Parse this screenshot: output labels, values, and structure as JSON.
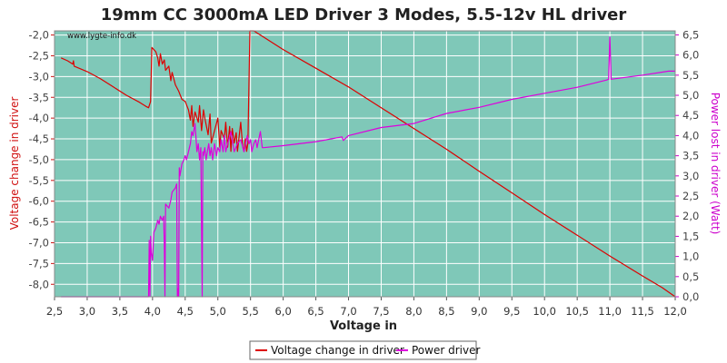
{
  "chart_data": {
    "type": "line",
    "title": "19mm CC 3000mA LED Driver 3 Modes, 5.5-12v HL driver",
    "watermark": "www.lygte-info.dk",
    "xlabel": "Voltage in",
    "ylabel_left": "Voltage change in driver",
    "ylabel_right": "Power lost in driver (Watt)",
    "xlim": [
      2.5,
      12.0
    ],
    "ylim_left": [
      -8.3,
      -1.9
    ],
    "ylim_right": [
      0.0,
      6.6
    ],
    "x_ticks": [
      "2,5",
      "3,0",
      "3,5",
      "4,0",
      "4,5",
      "5,0",
      "5,5",
      "6,0",
      "6,5",
      "7,0",
      "7,5",
      "8,0",
      "8,5",
      "9,0",
      "9,5",
      "10,0",
      "10,5",
      "11,0",
      "11,5",
      "12,0"
    ],
    "y_left_ticks": [
      "-2,0",
      "-2,5",
      "-3,0",
      "-3,5",
      "-4,0",
      "-4,5",
      "-5,0",
      "-5,5",
      "-6,0",
      "-6,5",
      "-7,0",
      "-7,5",
      "-8,0"
    ],
    "y_right_ticks": [
      "0,0",
      "0,5",
      "1,0",
      "1,5",
      "2,0",
      "2,5",
      "3,0",
      "3,5",
      "4,0",
      "4,5",
      "5,0",
      "5,5",
      "6,0",
      "6,5"
    ],
    "grid": true,
    "legend_placement": "bottom",
    "colors": {
      "plot_bg": "#7fc8b8",
      "grid": "#ffffff",
      "left_axis": "#d01010",
      "right_axis": "#cc00cc"
    },
    "series": [
      {
        "name": "Voltage change in driver",
        "axis": "left",
        "color": "#dd0000",
        "points": [
          [
            2.6,
            -2.55
          ],
          [
            2.7,
            -2.62
          ],
          [
            2.78,
            -2.7
          ],
          [
            2.79,
            -2.62
          ],
          [
            2.8,
            -2.75
          ],
          [
            3.0,
            -2.88
          ],
          [
            3.2,
            -3.05
          ],
          [
            3.4,
            -3.25
          ],
          [
            3.6,
            -3.45
          ],
          [
            3.8,
            -3.62
          ],
          [
            3.9,
            -3.72
          ],
          [
            3.94,
            -3.75
          ],
          [
            3.97,
            -3.6
          ],
          [
            3.99,
            -2.3
          ],
          [
            4.05,
            -2.4
          ],
          [
            4.08,
            -2.55
          ],
          [
            4.1,
            -2.75
          ],
          [
            4.12,
            -2.45
          ],
          [
            4.15,
            -2.7
          ],
          [
            4.18,
            -2.6
          ],
          [
            4.2,
            -2.85
          ],
          [
            4.25,
            -2.75
          ],
          [
            4.28,
            -3.1
          ],
          [
            4.3,
            -2.9
          ],
          [
            4.35,
            -3.2
          ],
          [
            4.4,
            -3.35
          ],
          [
            4.45,
            -3.55
          ],
          [
            4.5,
            -3.6
          ],
          [
            4.55,
            -3.8
          ],
          [
            4.58,
            -4.05
          ],
          [
            4.6,
            -3.7
          ],
          [
            4.62,
            -4.2
          ],
          [
            4.65,
            -3.85
          ],
          [
            4.7,
            -4.1
          ],
          [
            4.72,
            -3.7
          ],
          [
            4.75,
            -4.3
          ],
          [
            4.78,
            -3.8
          ],
          [
            4.8,
            -4.0
          ],
          [
            4.85,
            -4.4
          ],
          [
            4.88,
            -3.9
          ],
          [
            4.9,
            -4.6
          ],
          [
            4.95,
            -4.3
          ],
          [
            5.0,
            -4.0
          ],
          [
            5.03,
            -4.7
          ],
          [
            5.05,
            -4.3
          ],
          [
            5.1,
            -4.5
          ],
          [
            5.12,
            -4.1
          ],
          [
            5.15,
            -4.7
          ],
          [
            5.18,
            -4.2
          ],
          [
            5.2,
            -4.8
          ],
          [
            5.22,
            -4.25
          ],
          [
            5.25,
            -4.6
          ],
          [
            5.28,
            -4.35
          ],
          [
            5.3,
            -4.8
          ],
          [
            5.35,
            -4.1
          ],
          [
            5.38,
            -4.7
          ],
          [
            5.4,
            -4.8
          ],
          [
            5.42,
            -4.5
          ],
          [
            5.44,
            -4.8
          ],
          [
            5.46,
            -4.6
          ],
          [
            5.49,
            -1.9
          ],
          [
            5.55,
            -1.9
          ],
          [
            5.7,
            -2.05
          ],
          [
            6.0,
            -2.35
          ],
          [
            6.5,
            -2.8
          ],
          [
            7.0,
            -3.25
          ],
          [
            7.5,
            -3.75
          ],
          [
            8.0,
            -4.25
          ],
          [
            8.5,
            -4.75
          ],
          [
            9.0,
            -5.28
          ],
          [
            9.5,
            -5.8
          ],
          [
            10.0,
            -6.32
          ],
          [
            10.5,
            -6.82
          ],
          [
            11.0,
            -7.32
          ],
          [
            11.5,
            -7.8
          ],
          [
            11.8,
            -8.08
          ],
          [
            12.0,
            -8.3
          ]
        ]
      },
      {
        "name": "Power driver",
        "axis": "right",
        "color": "#dd00dd",
        "points": [
          [
            2.6,
            0.0
          ],
          [
            3.0,
            0.0
          ],
          [
            3.5,
            0.0
          ],
          [
            3.85,
            0.0
          ],
          [
            3.94,
            0.0
          ],
          [
            3.95,
            1.4
          ],
          [
            3.96,
            0.0
          ],
          [
            3.97,
            1.5
          ],
          [
            3.98,
            1.1
          ],
          [
            4.0,
            0.9
          ],
          [
            4.02,
            1.6
          ],
          [
            4.05,
            1.7
          ],
          [
            4.08,
            1.9
          ],
          [
            4.1,
            1.8
          ],
          [
            4.12,
            2.0
          ],
          [
            4.15,
            1.9
          ],
          [
            4.17,
            2.0
          ],
          [
            4.18,
            1.3
          ],
          [
            4.19,
            0.0
          ],
          [
            4.2,
            2.3
          ],
          [
            4.25,
            2.2
          ],
          [
            4.28,
            2.4
          ],
          [
            4.3,
            2.6
          ],
          [
            4.35,
            2.7
          ],
          [
            4.37,
            2.8
          ],
          [
            4.38,
            0.0
          ],
          [
            4.39,
            0.2
          ],
          [
            4.4,
            0.0
          ],
          [
            4.41,
            3.2
          ],
          [
            4.42,
            3.0
          ],
          [
            4.45,
            3.3
          ],
          [
            4.48,
            3.4
          ],
          [
            4.5,
            3.5
          ],
          [
            4.52,
            3.4
          ],
          [
            4.55,
            3.6
          ],
          [
            4.58,
            3.8
          ],
          [
            4.6,
            4.1
          ],
          [
            4.62,
            4.0
          ],
          [
            4.65,
            4.3
          ],
          [
            4.68,
            3.6
          ],
          [
            4.7,
            3.8
          ],
          [
            4.72,
            3.4
          ],
          [
            4.74,
            3.7
          ],
          [
            4.76,
            0.0
          ],
          [
            4.77,
            3.6
          ],
          [
            4.78,
            3.5
          ],
          [
            4.8,
            3.7
          ],
          [
            4.82,
            3.4
          ],
          [
            4.84,
            3.6
          ],
          [
            4.86,
            3.8
          ],
          [
            4.88,
            3.5
          ],
          [
            4.9,
            3.7
          ],
          [
            4.92,
            3.4
          ],
          [
            4.95,
            3.8
          ],
          [
            4.98,
            3.5
          ],
          [
            5.0,
            3.7
          ],
          [
            5.03,
            3.6
          ],
          [
            5.05,
            3.9
          ],
          [
            5.08,
            3.6
          ],
          [
            5.1,
            4.0
          ],
          [
            5.12,
            3.6
          ],
          [
            5.15,
            3.8
          ],
          [
            5.2,
            4.1
          ],
          [
            5.25,
            3.6
          ],
          [
            5.3,
            3.8
          ],
          [
            5.35,
            3.9
          ],
          [
            5.4,
            3.6
          ],
          [
            5.45,
            4.0
          ],
          [
            5.48,
            3.8
          ],
          [
            5.5,
            3.9
          ],
          [
            5.52,
            3.6
          ],
          [
            5.55,
            3.8
          ],
          [
            5.58,
            3.9
          ],
          [
            5.6,
            3.7
          ],
          [
            5.65,
            4.1
          ],
          [
            5.68,
            3.7
          ],
          [
            5.7,
            3.7
          ],
          [
            6.0,
            3.75
          ],
          [
            6.5,
            3.85
          ],
          [
            6.9,
            3.97
          ],
          [
            6.92,
            3.88
          ],
          [
            7.0,
            4.0
          ],
          [
            7.5,
            4.2
          ],
          [
            8.0,
            4.3
          ],
          [
            8.5,
            4.55
          ],
          [
            9.0,
            4.7
          ],
          [
            9.5,
            4.9
          ],
          [
            10.0,
            5.05
          ],
          [
            10.5,
            5.2
          ],
          [
            10.95,
            5.38
          ],
          [
            10.98,
            5.4
          ],
          [
            11.0,
            6.45
          ],
          [
            11.02,
            5.4
          ],
          [
            11.5,
            5.5
          ],
          [
            11.9,
            5.6
          ],
          [
            12.0,
            5.6
          ]
        ]
      }
    ]
  }
}
